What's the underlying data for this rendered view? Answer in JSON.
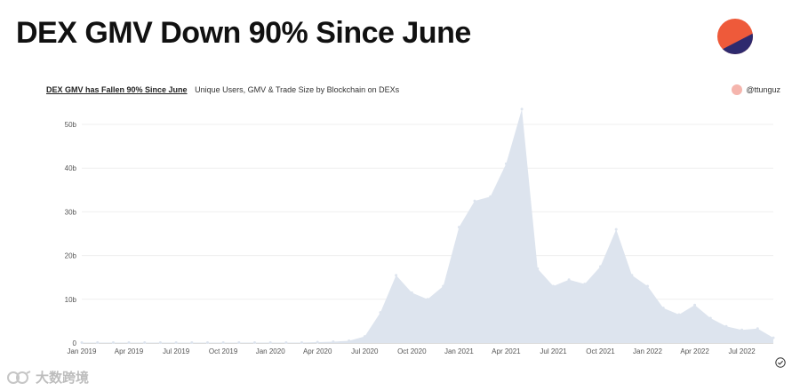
{
  "page": {
    "title": "DEX GMV Down 90% Since June",
    "colors": {
      "logo_top": "#ee5a3a",
      "logo_bottom": "#2e2a6e",
      "area_fill": "#dde4ee",
      "author_dot": "#f5b5ad"
    }
  },
  "header": {
    "chart_title": "DEX GMV has Fallen 90% Since June",
    "chart_subtitle": "Unique Users, GMV & Trade Size by Blockchain on DEXs",
    "author": "@ttunguz"
  },
  "watermark": {
    "text": "大数跨境",
    "icon": "watermark-logo-icon"
  },
  "status_icon": "check-circle-icon",
  "chart_data": {
    "type": "area",
    "title": "DEX GMV has Fallen 90% Since June",
    "subtitle": "Unique Users, GMV & Trade Size by Blockchain on DEXs",
    "xlabel": "",
    "ylabel": "",
    "ylim": [
      0,
      50
    ],
    "y_unit_suffix": "b",
    "yticks": [
      0,
      10,
      20,
      30,
      40,
      50
    ],
    "ytick_labels": [
      "0",
      "10b",
      "20b",
      "30b",
      "40b",
      "50b"
    ],
    "xtick_labels": [
      "Jan 2019",
      "Apr 2019",
      "Jul 2019",
      "Oct 2019",
      "Jan 2020",
      "Apr 2020",
      "Jul 2020",
      "Oct 2020",
      "Jan 2021",
      "Apr 2021",
      "Jul 2021",
      "Oct 2021",
      "Jan 2022",
      "Apr 2022",
      "Jul 2022"
    ],
    "grid": true,
    "series": [
      {
        "x": [
          "2019-01",
          "2019-02",
          "2019-03",
          "2019-04",
          "2019-05",
          "2019-06",
          "2019-07",
          "2019-08",
          "2019-09",
          "2019-10",
          "2019-11",
          "2019-12",
          "2020-01",
          "2020-02",
          "2020-03",
          "2020-04",
          "2020-05",
          "2020-06",
          "2020-07",
          "2020-08",
          "2020-09",
          "2020-10",
          "2020-11",
          "2020-12",
          "2021-01",
          "2021-02",
          "2021-03",
          "2021-04",
          "2021-05",
          "2021-06",
          "2021-07",
          "2021-08",
          "2021-09",
          "2021-10",
          "2021-11",
          "2021-12",
          "2022-01",
          "2022-02",
          "2022-03",
          "2022-04",
          "2022-05",
          "2022-06",
          "2022-07",
          "2022-08",
          "2022-09"
        ],
        "values": [
          0.1,
          0.1,
          0.1,
          0.1,
          0.1,
          0.1,
          0.1,
          0.1,
          0.1,
          0.1,
          0.1,
          0.1,
          0.1,
          0.1,
          0.1,
          0.2,
          0.3,
          0.5,
          1.5,
          7.0,
          15.5,
          11.5,
          10.0,
          13.0,
          26.5,
          32.5,
          33.5,
          41.0,
          53.5,
          17.0,
          13.0,
          14.5,
          13.5,
          17.5,
          26.0,
          15.5,
          13.0,
          8.0,
          6.5,
          8.7,
          5.7,
          3.8,
          3.0,
          3.3,
          1.2
        ]
      }
    ]
  }
}
